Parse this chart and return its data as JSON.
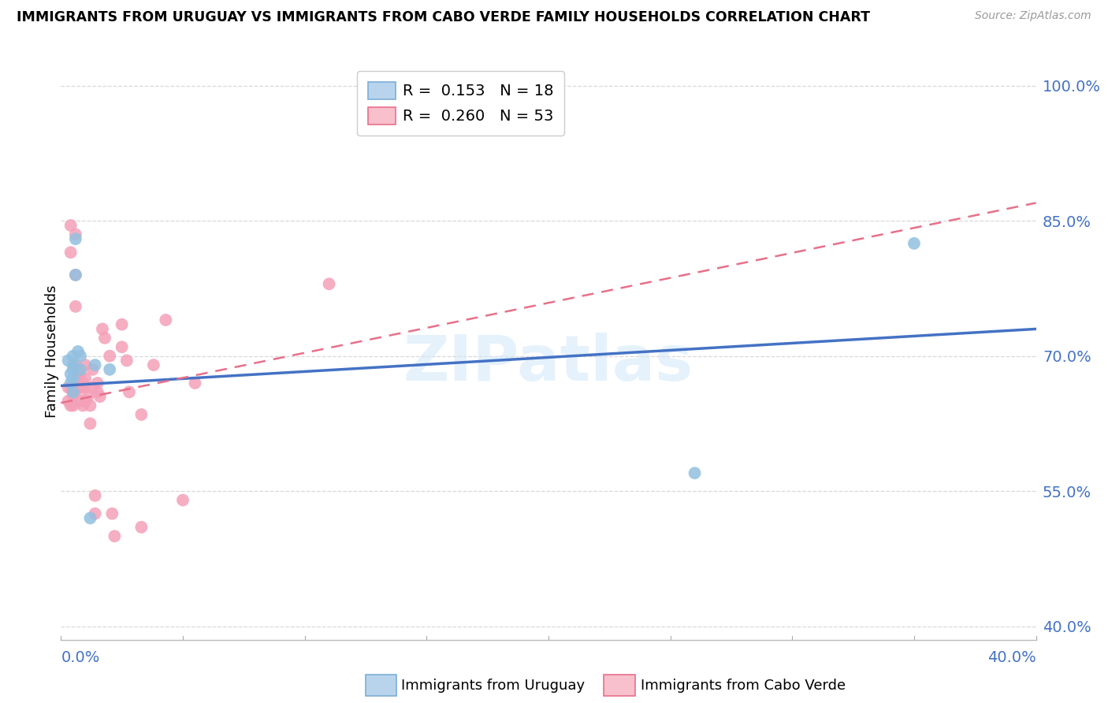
{
  "title": "IMMIGRANTS FROM URUGUAY VS IMMIGRANTS FROM CABO VERDE FAMILY HOUSEHOLDS CORRELATION CHART",
  "source": "Source: ZipAtlas.com",
  "ylabel": "Family Households",
  "yticks": [
    "100.0%",
    "85.0%",
    "70.0%",
    "55.0%",
    "40.0%"
  ],
  "ytick_values": [
    1.0,
    0.85,
    0.7,
    0.55,
    0.4
  ],
  "xlim": [
    0.0,
    0.4
  ],
  "ylim": [
    0.385,
    1.025
  ],
  "blue_color": "#92c0e0",
  "pink_color": "#f4a0b8",
  "blue_line_color": "#4472c4",
  "pink_line_color": "#e8708a",
  "axis_color": "#4472c4",
  "grid_color": "#d8d8d8",
  "background_color": "#ffffff",
  "uruguay_points_x": [
    0.003,
    0.004,
    0.004,
    0.005,
    0.005,
    0.005,
    0.005,
    0.005,
    0.006,
    0.006,
    0.007,
    0.008,
    0.008,
    0.012,
    0.014,
    0.02,
    0.26,
    0.35
  ],
  "uruguay_points_y": [
    0.695,
    0.68,
    0.67,
    0.7,
    0.69,
    0.685,
    0.675,
    0.66,
    0.83,
    0.79,
    0.705,
    0.7,
    0.685,
    0.52,
    0.69,
    0.685,
    0.57,
    0.825
  ],
  "caboverde_points_x": [
    0.003,
    0.003,
    0.004,
    0.004,
    0.004,
    0.004,
    0.005,
    0.005,
    0.005,
    0.005,
    0.006,
    0.006,
    0.006,
    0.006,
    0.006,
    0.007,
    0.007,
    0.007,
    0.008,
    0.008,
    0.008,
    0.009,
    0.009,
    0.01,
    0.01,
    0.01,
    0.01,
    0.011,
    0.012,
    0.012,
    0.013,
    0.013,
    0.014,
    0.014,
    0.015,
    0.015,
    0.016,
    0.017,
    0.018,
    0.02,
    0.021,
    0.022,
    0.025,
    0.025,
    0.027,
    0.028,
    0.033,
    0.033,
    0.038,
    0.043,
    0.05,
    0.055,
    0.11
  ],
  "caboverde_points_y": [
    0.665,
    0.65,
    0.845,
    0.815,
    0.665,
    0.645,
    0.665,
    0.66,
    0.655,
    0.645,
    0.835,
    0.79,
    0.755,
    0.69,
    0.66,
    0.685,
    0.675,
    0.665,
    0.68,
    0.665,
    0.65,
    0.67,
    0.645,
    0.69,
    0.675,
    0.665,
    0.65,
    0.655,
    0.645,
    0.625,
    0.685,
    0.665,
    0.545,
    0.525,
    0.67,
    0.66,
    0.655,
    0.73,
    0.72,
    0.7,
    0.525,
    0.5,
    0.735,
    0.71,
    0.695,
    0.66,
    0.635,
    0.51,
    0.69,
    0.74,
    0.54,
    0.67,
    0.78
  ],
  "uruguay_line_x": [
    0.0,
    0.4
  ],
  "uruguay_line_y": [
    0.667,
    0.73
  ],
  "caboverde_line_x": [
    0.0,
    0.4
  ],
  "caboverde_line_y": [
    0.648,
    0.87
  ],
  "watermark_text": "ZIPatlas",
  "legend_label1": "R =  0.153   N = 18",
  "legend_label2": "R =  0.260   N = 53",
  "bottom_label1": "Immigrants from Uruguay",
  "bottom_label2": "Immigrants from Cabo Verde"
}
